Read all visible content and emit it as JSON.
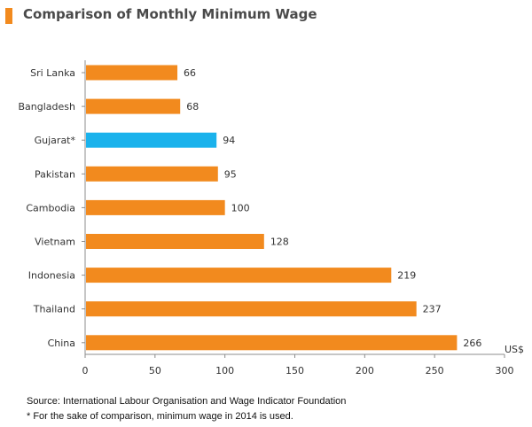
{
  "header": {
    "title": "Comparison of Monthly Minimum Wage"
  },
  "chart_data": {
    "type": "bar",
    "orientation": "horizontal",
    "title": "Comparison of Monthly Minimum Wage",
    "xlabel": "US$",
    "ylabel": "",
    "xlim": [
      0,
      300
    ],
    "xticks": [
      0,
      50,
      100,
      150,
      200,
      250,
      300
    ],
    "grid": false,
    "categories": [
      "Sri Lanka",
      "Bangladesh",
      "Gujarat*",
      "Pakistan",
      "Cambodia",
      "Vietnam",
      "Indonesia",
      "Thailand",
      "China"
    ],
    "values": [
      66,
      68,
      94,
      95,
      100,
      128,
      219,
      237,
      266
    ],
    "highlight": "Gujarat*",
    "colors": {
      "default": "#f28a1e",
      "highlight": "#1ab2ec",
      "title_marker": "#f28a1e"
    }
  },
  "footnotes": {
    "source": "Source: International Labour Organisation and Wage Indicator Foundation",
    "note": "* For the sake of comparison, minimum wage in 2014 is used."
  }
}
